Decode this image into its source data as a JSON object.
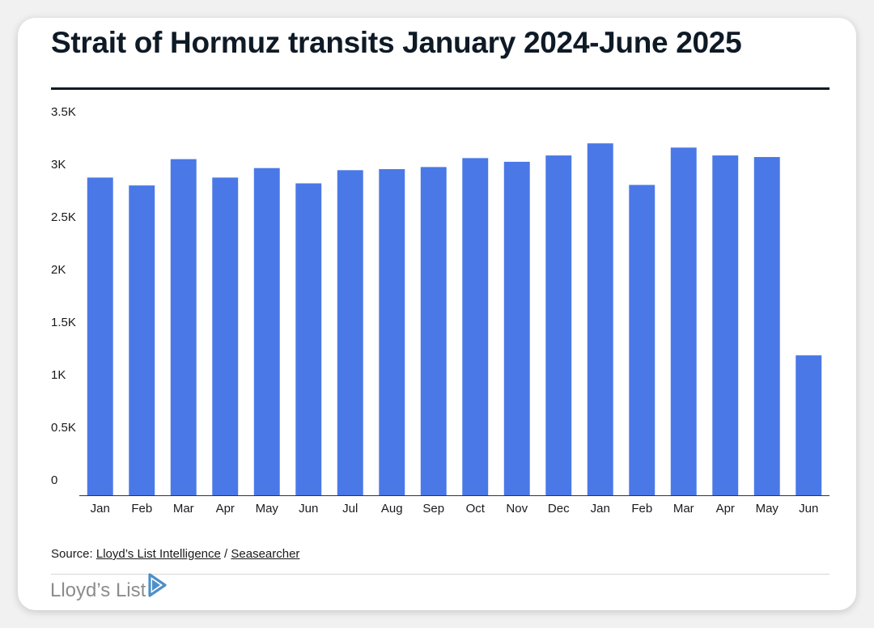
{
  "title": "Strait of Hormuz transits January 2024-June 2025",
  "source": {
    "prefix": "Source: ",
    "link1": "Lloyd’s List Intelligence",
    "separator": " / ",
    "link2": "Seasearcher"
  },
  "logo": {
    "text": "Lloyd’s List",
    "mark_icon": "play-arrow-icon"
  },
  "colors": {
    "bar": "#4a78e6",
    "title": "#0e1a26",
    "axis": "#333333"
  },
  "chart_data": {
    "type": "bar",
    "title": "Strait of Hormuz transits January 2024-June 2025",
    "xlabel": "",
    "ylabel": "",
    "ylim": [
      0,
      3500
    ],
    "yticks": [
      {
        "value": 0,
        "label": "0"
      },
      {
        "value": 500,
        "label": "0.5K"
      },
      {
        "value": 1000,
        "label": "1K"
      },
      {
        "value": 1500,
        "label": "1.5K"
      },
      {
        "value": 2000,
        "label": "2K"
      },
      {
        "value": 2500,
        "label": "2.5K"
      },
      {
        "value": 3000,
        "label": "3K"
      },
      {
        "value": 3500,
        "label": "3.5K"
      }
    ],
    "grid": false,
    "categories": [
      "Jan",
      "Feb",
      "Mar",
      "Apr",
      "May",
      "Jun",
      "Jul",
      "Aug",
      "Sep",
      "Oct",
      "Nov",
      "Dec",
      "Jan",
      "Feb",
      "Mar",
      "Apr",
      "May",
      "Jun"
    ],
    "values": [
      3020,
      2945,
      3195,
      3020,
      3110,
      2965,
      3090,
      3100,
      3120,
      3205,
      3170,
      3230,
      3345,
      2950,
      3305,
      3230,
      3215,
      1330
    ]
  }
}
